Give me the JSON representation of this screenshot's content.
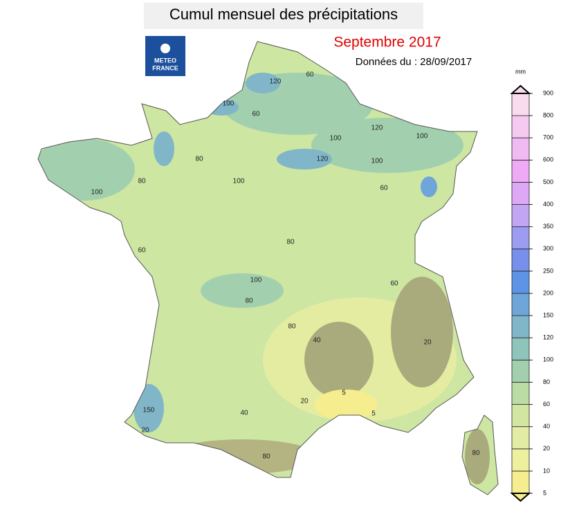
{
  "header": {
    "title": "Cumul mensuel des précipitations",
    "period": "Septembre 2017",
    "date": "Données du : 28/09/2017",
    "logo": [
      "METEO",
      "FRANCE"
    ]
  },
  "legend": {
    "unit": "mm",
    "ticks": [
      5,
      10,
      20,
      40,
      60,
      80,
      100,
      120,
      150,
      200,
      250,
      300,
      350,
      400,
      500,
      600,
      700,
      800,
      900
    ],
    "colors": [
      "#f6ee8e",
      "#eef0a0",
      "#e2eca4",
      "#d2e6a2",
      "#bcdca6",
      "#a2d0ae",
      "#8fc4ba",
      "#80b6c8",
      "#6ea6da",
      "#5e94e6",
      "#7890ec",
      "#9c9cf0",
      "#c2a6f4",
      "#dea8f6",
      "#eeaaf4",
      "#f2baf2",
      "#f6caf0",
      "#f9dcee"
    ]
  },
  "map": {
    "contour_labels": [
      120,
      100,
      60,
      60,
      100,
      120,
      120,
      100,
      100,
      80,
      100,
      60,
      80,
      100,
      80,
      60,
      40,
      40,
      20,
      5,
      5,
      150,
      20,
      100,
      80,
      60,
      80,
      20,
      80,
      80
    ]
  }
}
